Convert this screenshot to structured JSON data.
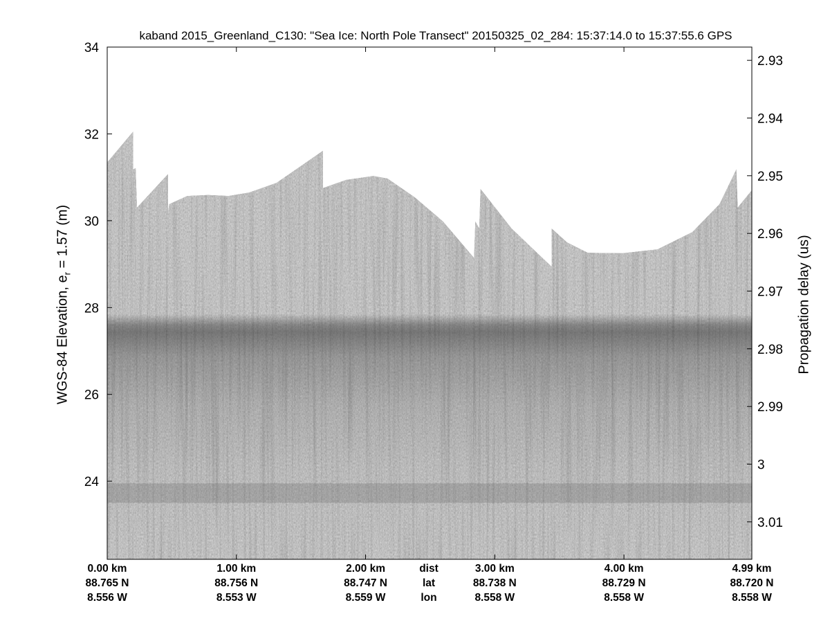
{
  "chart_data": {
    "type": "heatmap",
    "title": "kaband 2015_Greenland_C130: \"Sea Ice: North Pole Transect\"  20150325_02_284: 15:37:14.0 to 15:37:55.6 GPS",
    "ylabel": "WGS-84 Elevation, e",
    "ylabel_sub": "r",
    "ylabel_suffix": " = 1.57 (m)",
    "ylabel_right": "Propagation delay (us)",
    "ylim": [
      22.2,
      34
    ],
    "yticks": [
      "34",
      "32",
      "30",
      "28",
      "26",
      "24"
    ],
    "ytick_values": [
      34,
      32,
      30,
      28,
      26,
      24
    ],
    "ylim_right": [
      2.9277,
      3.0165
    ],
    "yticks_right": [
      "2.93",
      "2.94",
      "2.95",
      "2.96",
      "2.97",
      "2.98",
      "2.99",
      "3",
      "3.01"
    ],
    "ytick_right_values": [
      2.93,
      2.94,
      2.95,
      2.96,
      2.97,
      2.98,
      2.99,
      3.0,
      3.01
    ],
    "xlim_km": [
      0,
      4.99
    ],
    "x_rows": {
      "labels": [
        "dist",
        "lat",
        "lon"
      ],
      "ticks": [
        {
          "km": 0.0,
          "dist": "0.00 km",
          "lat": "88.765 N",
          "lon": "8.556 W"
        },
        {
          "km": 1.0,
          "dist": "1.00 km",
          "lat": "88.756 N",
          "lon": "8.553 W"
        },
        {
          "km": 2.0,
          "dist": "2.00 km",
          "lat": "88.747 N",
          "lon": "8.559 W"
        },
        {
          "km": 3.0,
          "dist": "3.00 km",
          "lat": "88.738 N",
          "lon": "8.558 W"
        },
        {
          "km": 4.0,
          "dist": "4.00 km",
          "lat": "88.729 N",
          "lon": "8.558 W"
        },
        {
          "km": 4.99,
          "dist": "4.99 km",
          "lat": "88.720 N",
          "lon": "8.558 W"
        }
      ]
    },
    "data_top_boundary": {
      "km": [
        0.0,
        0.2,
        0.2,
        0.22,
        0.23,
        0.47,
        0.47,
        0.48,
        0.62,
        0.78,
        0.94,
        1.1,
        1.31,
        1.67,
        1.67,
        1.85,
        2.06,
        2.17,
        2.38,
        2.6,
        2.84,
        2.85,
        2.88,
        2.89,
        3.13,
        3.44,
        3.44,
        3.56,
        3.72,
        3.99,
        4.26,
        4.53,
        4.74,
        4.87,
        4.88,
        4.99
      ],
      "elev": [
        31.34,
        32.05,
        31.18,
        31.21,
        30.3,
        31.07,
        30.17,
        30.38,
        30.57,
        30.59,
        30.57,
        30.65,
        30.87,
        31.61,
        30.75,
        30.94,
        31.03,
        30.97,
        30.54,
        29.98,
        29.14,
        29.98,
        29.82,
        30.73,
        29.82,
        28.94,
        29.82,
        29.5,
        29.26,
        29.25,
        29.34,
        29.74,
        30.38,
        31.18,
        30.3,
        30.7
      ]
    },
    "ice_surface_layer_elev": 27.5,
    "colormap": "gray",
    "colors": {
      "background": "#808080",
      "layer": "#3a3a3a"
    }
  }
}
